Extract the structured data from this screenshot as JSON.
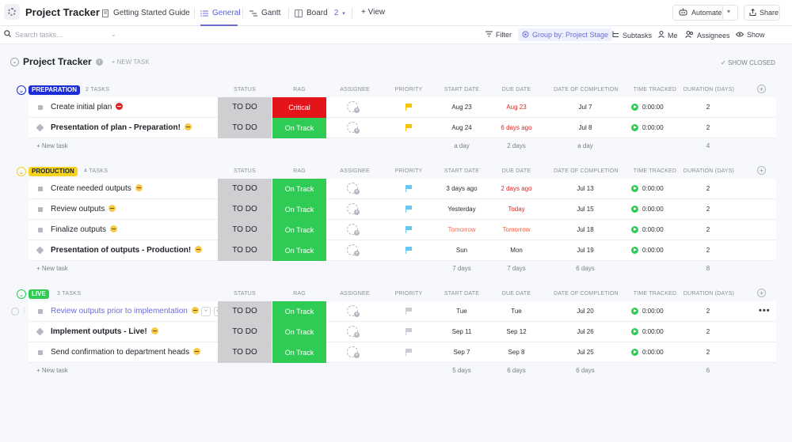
{
  "app": {
    "title": "Project Tracker"
  },
  "tabs": [
    {
      "label": "Getting Started Guide"
    },
    {
      "label": "General"
    },
    {
      "label": "Gantt"
    },
    {
      "label": "Board",
      "count": "2"
    }
  ],
  "add_view_label": "+ View",
  "automate_label": "Automate",
  "share_label": "Share",
  "filters": {
    "search_placeholder": "Search tasks...",
    "filter": "Filter",
    "group_by": "Group by: Project Stage",
    "subtasks": "Subtasks",
    "me": "Me",
    "assignees": "Assignees",
    "show": "Show"
  },
  "page": {
    "title": "Project Tracker",
    "new_task": "+ NEW TASK",
    "show_closed": "SHOW CLOSED"
  },
  "columns": {
    "status": "STATUS",
    "rag": "RAG",
    "assignee": "ASSIGNEE",
    "priority": "PRIORITY",
    "start_date": "START DATE",
    "due_date": "DUE DATE",
    "completion": "DATE OF COMPLETION",
    "time_tracked": "TIME TRACKED",
    "duration": "DURATION (DAYS)"
  },
  "new_task_label": "+ New task",
  "groups": [
    {
      "name": "PREPARATION",
      "count": "2 TASKS",
      "pill_bg": "#1a2bd8",
      "pill_fg": "#ffffff",
      "tasks": [
        {
          "name": "Create initial plan",
          "status": "TO DO",
          "rag": "Critical",
          "rag_color": "red",
          "priority": "yellow",
          "start": "Aug 23",
          "due": "Aug 23",
          "due_color": "red",
          "completion": "Jul 7",
          "time": "0:00:00",
          "duration": "2",
          "status_icon": "red"
        },
        {
          "name": "Presentation of plan - Preparation!",
          "status": "TO DO",
          "rag": "On Track",
          "rag_color": "green",
          "priority": "yellow",
          "start": "Aug 24",
          "due": "6 days ago",
          "due_color": "red",
          "completion": "Jul 8",
          "time": "0:00:00",
          "duration": "2",
          "status_icon": "yellow"
        }
      ],
      "footer": {
        "start": "a day",
        "due": "2 days",
        "completion": "a day",
        "duration": "4"
      }
    },
    {
      "name": "PRODUCTION",
      "count": "4 TASKS",
      "pill_bg": "#f7d21e",
      "pill_fg": "#1f2329",
      "tasks": [
        {
          "name": "Create needed outputs",
          "status": "TO DO",
          "rag": "On Track",
          "rag_color": "green",
          "priority": "blue",
          "start": "3 days ago",
          "start_color": "",
          "due": "2 days ago",
          "due_color": "red",
          "completion": "Jul 13",
          "time": "0:00:00",
          "duration": "2",
          "status_icon": "yellow"
        },
        {
          "name": "Review outputs",
          "status": "TO DO",
          "rag": "On Track",
          "rag_color": "green",
          "priority": "blue",
          "start": "Yesterday",
          "start_color": "",
          "due": "Today",
          "due_color": "red",
          "completion": "Jul 15",
          "time": "0:00:00",
          "duration": "2",
          "status_icon": "yellow"
        },
        {
          "name": "Finalize outputs",
          "status": "TO DO",
          "rag": "On Track",
          "rag_color": "green",
          "priority": "blue",
          "start": "Tomorrow",
          "start_color": "orange",
          "due": "Tomorrow",
          "due_color": "orange",
          "completion": "Jul 18",
          "time": "0:00:00",
          "duration": "2",
          "status_icon": "yellow"
        },
        {
          "name": "Presentation of outputs - Production!",
          "status": "TO DO",
          "rag": "On Track",
          "rag_color": "green",
          "priority": "blue",
          "start": "Sun",
          "start_color": "",
          "due": "Mon",
          "due_color": "",
          "completion": "Jul 19",
          "time": "0:00:00",
          "duration": "2",
          "status_icon": "yellow"
        }
      ],
      "footer": {
        "start": "7 days",
        "due": "7 days",
        "completion": "6 days",
        "duration": "8"
      }
    },
    {
      "name": "LIVE",
      "count": "3 TASKS",
      "pill_bg": "#2ecc55",
      "pill_fg": "#ffffff",
      "tasks": [
        {
          "name": "Review outputs prior to implementation",
          "status": "TO DO",
          "rag": "On Track",
          "rag_color": "green",
          "priority": "gray",
          "start": "Tue",
          "due": "Tue",
          "due_color": "",
          "completion": "Jul 20",
          "time": "0:00:00",
          "duration": "2",
          "status_icon": "yellow"
        },
        {
          "name": "Implement outputs - Live!",
          "status": "TO DO",
          "rag": "On Track",
          "rag_color": "green",
          "priority": "gray",
          "start": "Sep 11",
          "due": "Sep 12",
          "due_color": "",
          "completion": "Jul 26",
          "time": "0:00:00",
          "duration": "2",
          "status_icon": "yellow"
        },
        {
          "name": "Send confirmation to department heads",
          "status": "TO DO",
          "rag": "On Track",
          "rag_color": "green",
          "priority": "gray",
          "start": "Sep 7",
          "due": "Sep 8",
          "due_color": "",
          "completion": "Jul 25",
          "time": "0:00:00",
          "duration": "2",
          "status_icon": "yellow"
        }
      ],
      "footer": {
        "start": "5 days",
        "due": "6 days",
        "completion": "6 days",
        "duration": "6"
      }
    }
  ]
}
